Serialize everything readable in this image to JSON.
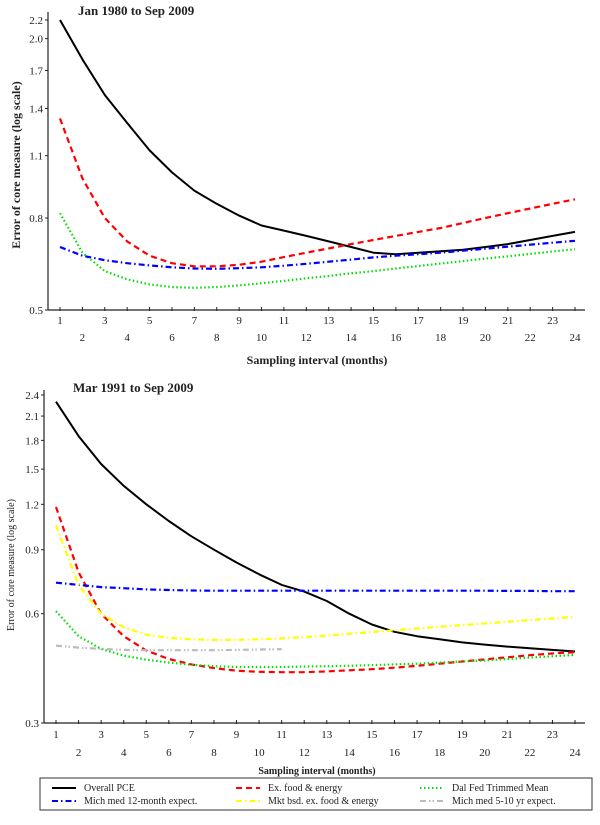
{
  "chart_data": [
    {
      "type": "line",
      "title": "Jan 1980 to Sep 2009",
      "xlabel": "Sampling interval (months)",
      "ylabel": "Error of core measure (log scale)",
      "yscale": "log",
      "xlim": [
        1,
        24
      ],
      "ylim": [
        0.5,
        2.25
      ],
      "xticks_top_row": [
        "1",
        "3",
        "5",
        "7",
        "9",
        "11",
        "13",
        "15",
        "17",
        "19",
        "21",
        "23"
      ],
      "xticks_bottom_row": [
        "2",
        "4",
        "6",
        "8",
        "10",
        "12",
        "14",
        "16",
        "18",
        "20",
        "22",
        "24"
      ],
      "yticks": [
        "0.5",
        "0.8",
        "1.1",
        "1.4",
        "1.7",
        "2.0",
        "2.2"
      ],
      "yticks_values": [
        0.5,
        0.8,
        1.1,
        1.4,
        1.7,
        2.0,
        2.2
      ],
      "grid": false,
      "x": [
        1,
        2,
        3,
        4,
        5,
        6,
        7,
        8,
        9,
        10,
        11,
        12,
        13,
        14,
        15,
        16,
        17,
        18,
        19,
        20,
        21,
        22,
        23,
        24
      ],
      "series": [
        {
          "name": "Overall PCE",
          "color": "#000000",
          "style": "solid",
          "values": [
            2.2,
            1.8,
            1.5,
            1.3,
            1.13,
            1.01,
            0.92,
            0.86,
            0.81,
            0.77,
            0.75,
            0.73,
            0.71,
            0.69,
            0.67,
            0.665,
            0.67,
            0.675,
            0.68,
            0.69,
            0.7,
            0.715,
            0.73,
            0.745
          ]
        },
        {
          "name": "Ex. food & energy",
          "color": "#ff0000",
          "style": "dashed",
          "values": [
            1.33,
            0.98,
            0.8,
            0.71,
            0.66,
            0.635,
            0.625,
            0.625,
            0.63,
            0.64,
            0.655,
            0.67,
            0.685,
            0.7,
            0.715,
            0.73,
            0.745,
            0.76,
            0.78,
            0.8,
            0.82,
            0.84,
            0.86,
            0.88
          ]
        },
        {
          "name": "Dal Fed Trimmed Mean",
          "color": "#00dd00",
          "style": "dotted",
          "values": [
            0.82,
            0.67,
            0.61,
            0.585,
            0.57,
            0.562,
            0.56,
            0.562,
            0.567,
            0.573,
            0.58,
            0.588,
            0.595,
            0.603,
            0.61,
            0.618,
            0.626,
            0.634,
            0.642,
            0.65,
            0.658,
            0.666,
            0.674,
            0.682
          ]
        },
        {
          "name": "Mich med 12-month expect.",
          "color": "#0000ff",
          "style": "dashdot",
          "values": [
            0.69,
            0.66,
            0.645,
            0.635,
            0.628,
            0.622,
            0.618,
            0.617,
            0.619,
            0.622,
            0.627,
            0.633,
            0.64,
            0.647,
            0.654,
            0.66,
            0.665,
            0.67,
            0.677,
            0.684,
            0.691,
            0.698,
            0.705,
            0.712
          ]
        }
      ]
    },
    {
      "type": "line",
      "title": "Mar 1991 to Sep 2009",
      "xlabel": "Sampling interval (months)",
      "ylabel": "Error of core measure (log scale)",
      "yscale": "log",
      "xlim": [
        1,
        24
      ],
      "ylim": [
        0.3,
        2.45
      ],
      "xticks_top_row": [
        "1",
        "3",
        "5",
        "7",
        "9",
        "11",
        "13",
        "15",
        "17",
        "19",
        "21",
        "23"
      ],
      "xticks_bottom_row": [
        "2",
        "4",
        "6",
        "8",
        "10",
        "12",
        "14",
        "16",
        "18",
        "20",
        "22",
        "24"
      ],
      "yticks": [
        "0.3",
        "0.6",
        "0.9",
        "1.2",
        "1.5",
        "1.8",
        "2.1",
        "2.4"
      ],
      "yticks_values": [
        0.3,
        0.6,
        0.9,
        1.2,
        1.5,
        1.8,
        2.1,
        2.4
      ],
      "grid": false,
      "x": [
        1,
        2,
        3,
        4,
        5,
        6,
        7,
        8,
        9,
        10,
        11,
        12,
        13,
        14,
        15,
        16,
        17,
        18,
        19,
        20,
        21,
        22,
        23,
        24
      ],
      "series": [
        {
          "name": "Overall PCE",
          "color": "#000000",
          "style": "solid",
          "values": [
            2.3,
            1.85,
            1.55,
            1.35,
            1.2,
            1.08,
            0.98,
            0.9,
            0.83,
            0.77,
            0.72,
            0.69,
            0.65,
            0.6,
            0.56,
            0.535,
            0.52,
            0.51,
            0.5,
            0.493,
            0.487,
            0.482,
            0.477,
            0.472
          ]
        },
        {
          "name": "Ex. food & energy",
          "color": "#ff0000",
          "style": "dashed",
          "values": [
            1.18,
            0.78,
            0.6,
            0.52,
            0.475,
            0.45,
            0.435,
            0.425,
            0.418,
            0.415,
            0.414,
            0.414,
            0.416,
            0.419,
            0.422,
            0.426,
            0.431,
            0.437,
            0.443,
            0.449,
            0.455,
            0.461,
            0.466,
            0.47
          ]
        },
        {
          "name": "Dal Fed Trimmed Mean",
          "color": "#00dd00",
          "style": "dotted",
          "values": [
            0.61,
            0.52,
            0.48,
            0.46,
            0.448,
            0.44,
            0.434,
            0.43,
            0.428,
            0.428,
            0.428,
            0.429,
            0.43,
            0.431,
            0.433,
            0.435,
            0.437,
            0.44,
            0.443,
            0.446,
            0.45,
            0.454,
            0.458,
            0.462
          ]
        },
        {
          "name": "Mich med 12-month expect.",
          "color": "#0000ff",
          "style": "dashdot",
          "values": [
            0.73,
            0.72,
            0.71,
            0.705,
            0.7,
            0.697,
            0.695,
            0.694,
            0.694,
            0.694,
            0.694,
            0.694,
            0.694,
            0.694,
            0.694,
            0.694,
            0.694,
            0.694,
            0.694,
            0.694,
            0.693,
            0.693,
            0.692,
            0.692
          ]
        },
        {
          "name": "Mkt bsd. ex. food & energy",
          "color": "#ffff00",
          "style": "dashdot",
          "values": [
            1.05,
            0.72,
            0.6,
            0.55,
            0.525,
            0.515,
            0.51,
            0.508,
            0.508,
            0.51,
            0.513,
            0.517,
            0.522,
            0.528,
            0.534,
            0.54,
            0.546,
            0.552,
            0.558,
            0.564,
            0.57,
            0.576,
            0.582,
            0.588
          ]
        },
        {
          "name": "Mich med 5-10 yr expect.",
          "color": "#bbbbbb",
          "style": "dashdotdot",
          "values": [
            0.49,
            0.484,
            0.48,
            0.477,
            0.476,
            0.476,
            0.476,
            0.476,
            0.477,
            0.478,
            0.479,
            null,
            null,
            null,
            null,
            null,
            null,
            null,
            null,
            null,
            null,
            null,
            null,
            null
          ]
        }
      ]
    }
  ],
  "legend": {
    "placement": "bottom",
    "items": [
      {
        "label": "Overall PCE",
        "color": "#000000",
        "style": "solid"
      },
      {
        "label": "Ex. food & energy",
        "color": "#ff0000",
        "style": "dashed"
      },
      {
        "label": "Dal Fed Trimmed Mean",
        "color": "#00dd00",
        "style": "dotted"
      },
      {
        "label": "Mich med 12-month expect.",
        "color": "#0000ff",
        "style": "dashdot"
      },
      {
        "label": "Mkt bsd. ex. food & energy",
        "color": "#ffff00",
        "style": "dashdot"
      },
      {
        "label": "Mich med 5-10 yr expect.",
        "color": "#bbbbbb",
        "style": "dashdotdot"
      }
    ]
  }
}
